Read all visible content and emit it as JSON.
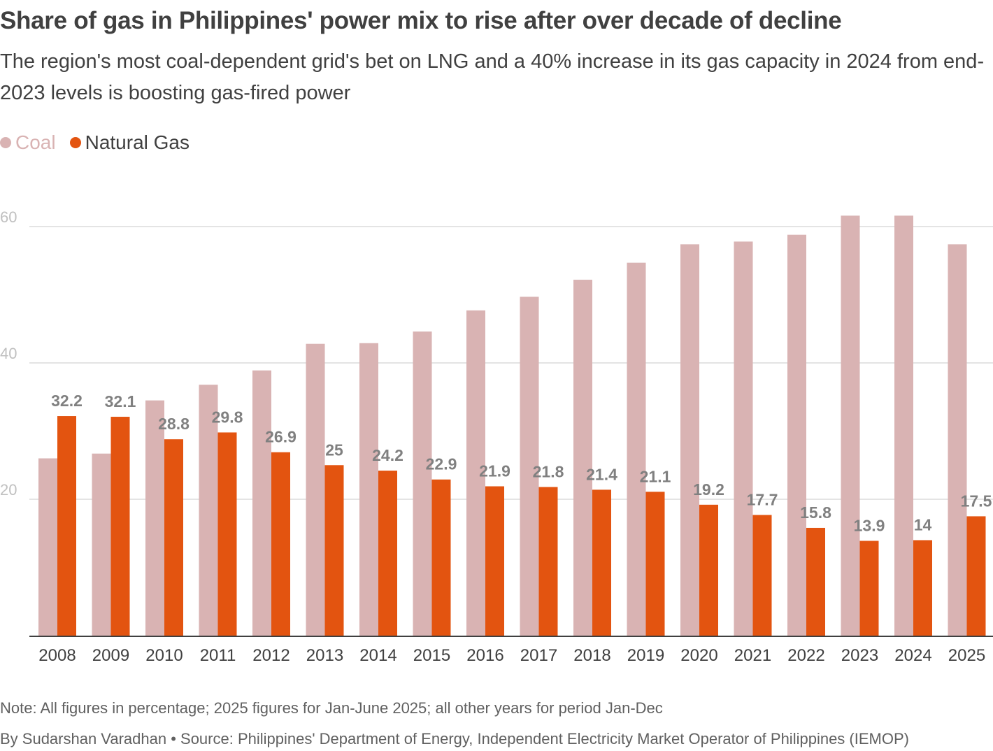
{
  "title": "Share of gas in Philippines' power mix to rise after over decade of decline",
  "subtitle": "The region's most coal-dependent grid's bet on LNG and a 40% increase in its gas capacity in 2024 from end-2023 levels is boosting gas-fired power",
  "legend": {
    "coal": "Coal",
    "gas": "Natural Gas"
  },
  "colors": {
    "coal": "#d9b3b3",
    "gas": "#e35410",
    "grid": "#c8c8c8",
    "axis": "#404040"
  },
  "chart_data": {
    "type": "bar",
    "categories": [
      "2008",
      "2009",
      "2010",
      "2011",
      "2012",
      "2013",
      "2014",
      "2015",
      "2016",
      "2017",
      "2018",
      "2019",
      "2020",
      "2021",
      "2022",
      "2023",
      "2024",
      "2025"
    ],
    "series": [
      {
        "name": "Coal",
        "values": [
          26,
          26.7,
          34.5,
          36.8,
          38.9,
          42.8,
          42.9,
          44.6,
          47.7,
          49.7,
          52.2,
          54.7,
          57.4,
          57.8,
          58.8,
          61.6,
          61.6,
          57.4
        ]
      },
      {
        "name": "Natural Gas",
        "values": [
          32.2,
          32.1,
          28.8,
          29.8,
          26.9,
          25,
          24.2,
          22.9,
          21.9,
          21.8,
          21.4,
          21.1,
          19.2,
          17.7,
          15.8,
          13.9,
          14,
          17.5
        ]
      }
    ],
    "data_labels": [
      "32.2",
      "32.1",
      "28.8",
      "29.8",
      "26.9",
      "25",
      "24.2",
      "22.9",
      "21.9",
      "21.8",
      "21.4",
      "21.1",
      "19.2",
      "17.7",
      "15.8",
      "13.9",
      "14",
      "17.5"
    ],
    "y_ticks": [
      "20",
      "40",
      "60"
    ],
    "ylim": [
      0,
      60
    ],
    "xlabel": "",
    "ylabel": "",
    "title": "Share of gas in Philippines' power mix to rise after over decade of decline"
  },
  "note": "Note: All figures in percentage; 2025 figures for Jan-June 2025; all other years for period Jan-Dec",
  "source": "By Sudarshan Varadhan • Source: Philippines' Department of Energy, Independent Electricity Market Operator of Philippines (IEMOP)"
}
